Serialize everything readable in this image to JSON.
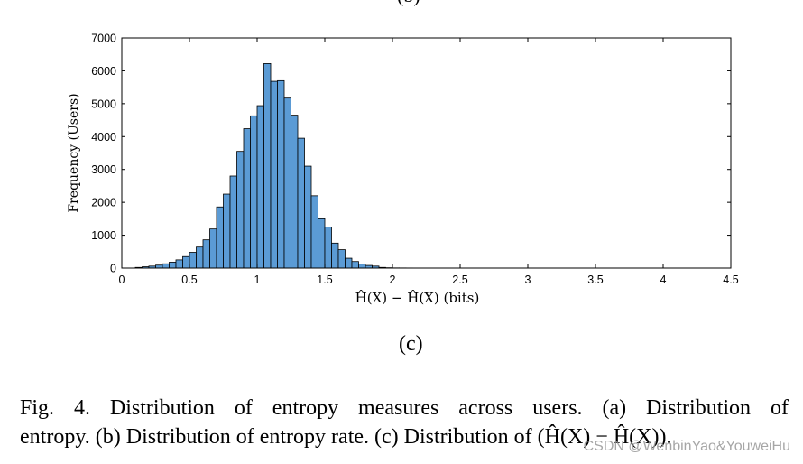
{
  "top_panel_label": "(b)",
  "panel_label": "(c)",
  "caption": {
    "line1": "Fig. 4.    Distribution of entropy measures across users. (a) Distribution of",
    "line2": "entropy. (b) Distribution of entropy rate. (c) Distribution of (Ĥ(X) − Ĥ(X))."
  },
  "watermark": "CSDN @WenbinYao&YouweiHu",
  "chart_data": {
    "type": "bar",
    "title": "",
    "xlabel": "Ĥ(X) − Ĥ(X) (bits)",
    "ylabel": "Frequency (Users)",
    "xlim": [
      0,
      4.5
    ],
    "ylim": [
      0,
      7000
    ],
    "xticks": [
      0,
      0.5,
      1,
      1.5,
      2,
      2.5,
      3,
      3.5,
      4,
      4.5
    ],
    "xtick_labels": [
      "0",
      "0.5",
      "1",
      "1.5",
      "2",
      "2.5",
      "3",
      "3.5",
      "4",
      "4.5"
    ],
    "yticks": [
      0,
      1000,
      2000,
      3000,
      4000,
      5000,
      6000,
      7000
    ],
    "ytick_labels": [
      "0",
      "1000",
      "2000",
      "3000",
      "4000",
      "5000",
      "6000",
      "7000"
    ],
    "grid": false,
    "bar_color": "#5B9BD5",
    "bin_edges": [
      0.1,
      0.15,
      0.2,
      0.25,
      0.3,
      0.35,
      0.4,
      0.45,
      0.5,
      0.55,
      0.6,
      0.65,
      0.7,
      0.75,
      0.8,
      0.85,
      0.9,
      0.95,
      1.0,
      1.05,
      1.1,
      1.15,
      1.2,
      1.25,
      1.3,
      1.35,
      1.4,
      1.45,
      1.5,
      1.55,
      1.6,
      1.65,
      1.7,
      1.75,
      1.8,
      1.85,
      1.9,
      1.95,
      2.0,
      2.05,
      2.1,
      2.15,
      2.2,
      2.25,
      2.3,
      2.35,
      2.4,
      2.45,
      2.5
    ],
    "values": [
      20,
      40,
      60,
      90,
      130,
      180,
      250,
      350,
      480,
      640,
      860,
      1190,
      1860,
      2250,
      2800,
      3550,
      4240,
      4630,
      4940,
      6220,
      5680,
      5700,
      5170,
      4650,
      3950,
      3100,
      2200,
      1500,
      1250,
      760,
      560,
      300,
      200,
      120,
      80,
      60,
      20,
      10,
      5,
      4,
      3,
      2,
      2,
      2,
      1,
      1,
      1,
      1
    ]
  }
}
